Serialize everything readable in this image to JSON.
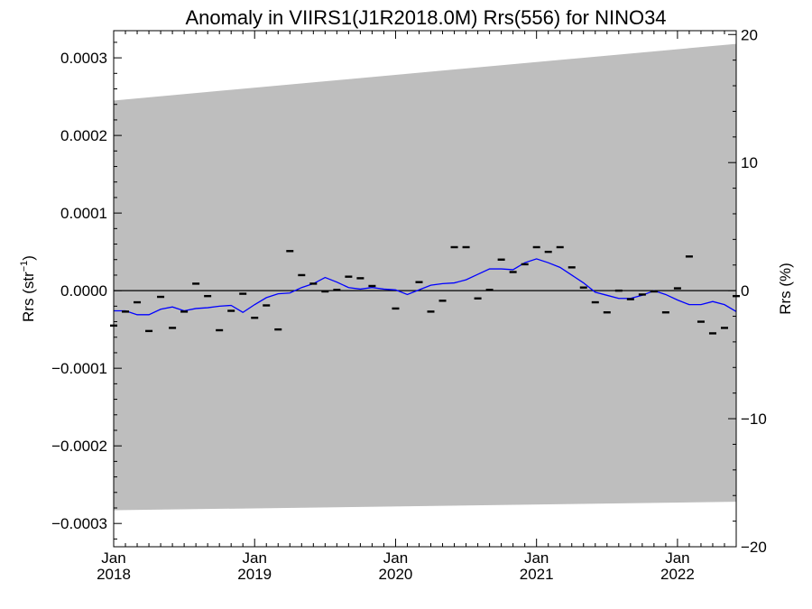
{
  "chart_data": {
    "type": "line",
    "title": "Anomaly in VIIRS1(J1R2018.0M) Rrs(556) for NINO34",
    "ylabel": "Rrs (str⁻¹)",
    "ylabel_base": "Rrs (str",
    "ylabel_sup": "−1",
    "ylabel_end": ")",
    "y2label": "Rrs (%)",
    "xlim": [
      "2018-01",
      "2022-06"
    ],
    "ylim": [
      -0.00033,
      0.000335
    ],
    "y2lim": [
      -20.0,
      20.3
    ],
    "x_ticks": [
      {
        "month": "Jan",
        "year": "2018",
        "date": "2018-01"
      },
      {
        "month": "Jan",
        "year": "2019",
        "date": "2019-01"
      },
      {
        "month": "Jan",
        "year": "2020",
        "date": "2020-01"
      },
      {
        "month": "Jan",
        "year": "2021",
        "date": "2021-01"
      },
      {
        "month": "Jan",
        "year": "2022",
        "date": "2022-01"
      }
    ],
    "y_ticks": [
      {
        "value": 0.0003,
        "label": "0.0003"
      },
      {
        "value": 0.0002,
        "label": "0.0002"
      },
      {
        "value": 0.0001,
        "label": "0.0001"
      },
      {
        "value": 0.0,
        "label": "0.0000"
      },
      {
        "value": -0.0001,
        "label": "−0.0001"
      },
      {
        "value": -0.0002,
        "label": "−0.0002"
      },
      {
        "value": -0.0003,
        "label": "−0.0003"
      }
    ],
    "y2_ticks": [
      {
        "value": 20,
        "label": "20"
      },
      {
        "value": 10,
        "label": "10"
      },
      {
        "value": 0,
        "label": "0"
      },
      {
        "value": -10,
        "label": "−10"
      },
      {
        "value": -20,
        "label": "−20"
      }
    ],
    "band": {
      "color": "#bebebe",
      "upper": [
        {
          "x": "2018-01",
          "y": 0.000245
        },
        {
          "x": "2022-06",
          "y": 0.000318
        }
      ],
      "lower": [
        {
          "x": "2018-01",
          "y": -0.000283
        },
        {
          "x": "2022-06",
          "y": -0.000272
        }
      ]
    },
    "zero_line": 0.0,
    "series": [
      {
        "style": "dash-markers",
        "color": "#000000",
        "points": [
          {
            "x": "2018-01",
            "y": -4.5e-05
          },
          {
            "x": "2018-02",
            "y": -2.7e-05
          },
          {
            "x": "2018-03",
            "y": -1.5e-05
          },
          {
            "x": "2018-04",
            "y": -5.2e-05
          },
          {
            "x": "2018-05",
            "y": -8e-06
          },
          {
            "x": "2018-06",
            "y": -4.8e-05
          },
          {
            "x": "2018-07",
            "y": -2.7e-05
          },
          {
            "x": "2018-08",
            "y": 9e-06
          },
          {
            "x": "2018-09",
            "y": -7e-06
          },
          {
            "x": "2018-10",
            "y": -5.1e-05
          },
          {
            "x": "2018-11",
            "y": -2.6e-05
          },
          {
            "x": "2018-12",
            "y": -4e-06
          },
          {
            "x": "2019-01",
            "y": -3.5e-05
          },
          {
            "x": "2019-02",
            "y": -1.9e-05
          },
          {
            "x": "2019-03",
            "y": -5e-05
          },
          {
            "x": "2019-04",
            "y": 5.1e-05
          },
          {
            "x": "2019-05",
            "y": 2e-05
          },
          {
            "x": "2019-06",
            "y": 9e-06
          },
          {
            "x": "2019-07",
            "y": -1e-06
          },
          {
            "x": "2019-08",
            "y": 1e-06
          },
          {
            "x": "2019-09",
            "y": 1.8e-05
          },
          {
            "x": "2019-10",
            "y": 1.6e-05
          },
          {
            "x": "2019-11",
            "y": 6e-06
          },
          {
            "x": "2020-01",
            "y": -2.3e-05
          },
          {
            "x": "2020-03",
            "y": 1.1e-05
          },
          {
            "x": "2020-04",
            "y": -2.7e-05
          },
          {
            "x": "2020-05",
            "y": -1.3e-05
          },
          {
            "x": "2020-06",
            "y": 5.6e-05
          },
          {
            "x": "2020-07",
            "y": 5.6e-05
          },
          {
            "x": "2020-08",
            "y": -1e-05
          },
          {
            "x": "2020-09",
            "y": 1e-06
          },
          {
            "x": "2020-10",
            "y": 4e-05
          },
          {
            "x": "2020-11",
            "y": 2.4e-05
          },
          {
            "x": "2020-12",
            "y": 3.4e-05
          },
          {
            "x": "2021-01",
            "y": 5.6e-05
          },
          {
            "x": "2021-02",
            "y": 5e-05
          },
          {
            "x": "2021-03",
            "y": 5.6e-05
          },
          {
            "x": "2021-04",
            "y": 3e-05
          },
          {
            "x": "2021-05",
            "y": 4e-06
          },
          {
            "x": "2021-06",
            "y": -1.5e-05
          },
          {
            "x": "2021-07",
            "y": -2.8e-05
          },
          {
            "x": "2021-08",
            "y": 0.0
          },
          {
            "x": "2021-09",
            "y": -1.1e-05
          },
          {
            "x": "2021-10",
            "y": -5e-06
          },
          {
            "x": "2021-11",
            "y": -1e-06
          },
          {
            "x": "2021-12",
            "y": -2.8e-05
          },
          {
            "x": "2022-01",
            "y": 3e-06
          },
          {
            "x": "2022-02",
            "y": 4.4e-05
          },
          {
            "x": "2022-03",
            "y": -4e-05
          },
          {
            "x": "2022-04",
            "y": -5.5e-05
          },
          {
            "x": "2022-05",
            "y": -4.8e-05
          },
          {
            "x": "2022-06",
            "y": -7e-06
          }
        ]
      },
      {
        "style": "line",
        "color": "#0000ff",
        "points": [
          {
            "x": "2018-01",
            "y": -2.6e-05
          },
          {
            "x": "2018-02",
            "y": -2.6e-05
          },
          {
            "x": "2018-03",
            "y": -3.1e-05
          },
          {
            "x": "2018-04",
            "y": -3.1e-05
          },
          {
            "x": "2018-05",
            "y": -2.4e-05
          },
          {
            "x": "2018-06",
            "y": -2.1e-05
          },
          {
            "x": "2018-07",
            "y": -2.6e-05
          },
          {
            "x": "2018-08",
            "y": -2.3e-05
          },
          {
            "x": "2018-09",
            "y": -2.2e-05
          },
          {
            "x": "2018-10",
            "y": -2e-05
          },
          {
            "x": "2018-11",
            "y": -1.9e-05
          },
          {
            "x": "2018-12",
            "y": -2.8e-05
          },
          {
            "x": "2019-01",
            "y": -1.8e-05
          },
          {
            "x": "2019-02",
            "y": -9e-06
          },
          {
            "x": "2019-03",
            "y": -4e-06
          },
          {
            "x": "2019-04",
            "y": -3e-06
          },
          {
            "x": "2019-05",
            "y": 4e-06
          },
          {
            "x": "2019-06",
            "y": 9e-06
          },
          {
            "x": "2019-07",
            "y": 1.7e-05
          },
          {
            "x": "2019-08",
            "y": 1.1e-05
          },
          {
            "x": "2019-09",
            "y": 4e-06
          },
          {
            "x": "2019-10",
            "y": 2e-06
          },
          {
            "x": "2019-11",
            "y": 4e-06
          },
          {
            "x": "2019-12",
            "y": 2e-06
          },
          {
            "x": "2020-01",
            "y": 1e-06
          },
          {
            "x": "2020-02",
            "y": -5e-06
          },
          {
            "x": "2020-03",
            "y": 1e-06
          },
          {
            "x": "2020-04",
            "y": 7e-06
          },
          {
            "x": "2020-05",
            "y": 9e-06
          },
          {
            "x": "2020-06",
            "y": 1e-05
          },
          {
            "x": "2020-07",
            "y": 1.4e-05
          },
          {
            "x": "2020-08",
            "y": 2.1e-05
          },
          {
            "x": "2020-09",
            "y": 2.8e-05
          },
          {
            "x": "2020-10",
            "y": 2.8e-05
          },
          {
            "x": "2020-11",
            "y": 2.7e-05
          },
          {
            "x": "2020-12",
            "y": 3.6e-05
          },
          {
            "x": "2021-01",
            "y": 4.1e-05
          },
          {
            "x": "2021-02",
            "y": 3.6e-05
          },
          {
            "x": "2021-03",
            "y": 3e-05
          },
          {
            "x": "2021-04",
            "y": 2e-05
          },
          {
            "x": "2021-05",
            "y": 1e-05
          },
          {
            "x": "2021-06",
            "y": -2e-06
          },
          {
            "x": "2021-07",
            "y": -6e-06
          },
          {
            "x": "2021-08",
            "y": -1e-05
          },
          {
            "x": "2021-09",
            "y": -1e-05
          },
          {
            "x": "2021-10",
            "y": -6e-06
          },
          {
            "x": "2021-11",
            "y": 0.0
          },
          {
            "x": "2021-12",
            "y": -5e-06
          },
          {
            "x": "2022-01",
            "y": -1.2e-05
          },
          {
            "x": "2022-02",
            "y": -1.8e-05
          },
          {
            "x": "2022-03",
            "y": -1.8e-05
          },
          {
            "x": "2022-04",
            "y": -1.4e-05
          },
          {
            "x": "2022-05",
            "y": -1.8e-05
          },
          {
            "x": "2022-06",
            "y": -2.7e-05
          }
        ]
      }
    ]
  }
}
